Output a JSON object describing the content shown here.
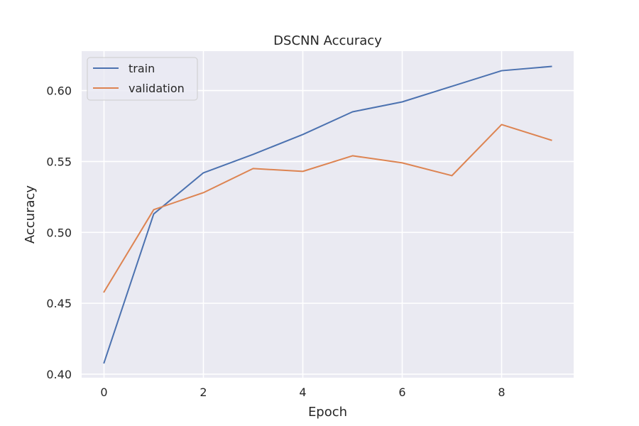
{
  "chart_data": {
    "type": "line",
    "title": "DSCNN Accuracy",
    "xlabel": "Epoch",
    "ylabel": "Accuracy",
    "x": [
      0,
      1,
      2,
      3,
      4,
      5,
      6,
      7,
      8,
      9
    ],
    "xlim": [
      -0.45,
      9.45
    ],
    "ylim": [
      0.3975,
      0.6278
    ],
    "xticks": [
      0,
      2,
      4,
      6,
      8
    ],
    "yticks": [
      0.4,
      0.45,
      0.5,
      0.55,
      0.6
    ],
    "ytick_labels": [
      "0.40",
      "0.45",
      "0.50",
      "0.55",
      "0.60"
    ],
    "xtick_labels": [
      "0",
      "2",
      "4",
      "6",
      "8"
    ],
    "grid": true,
    "legend_position": "top-left",
    "series": [
      {
        "name": "train",
        "color": "#4c72b0",
        "values": [
          0.408,
          0.513,
          0.542,
          0.555,
          0.569,
          0.585,
          0.592,
          0.603,
          0.614,
          0.617
        ]
      },
      {
        "name": "validation",
        "color": "#dd8452",
        "values": [
          0.458,
          0.516,
          0.528,
          0.545,
          0.543,
          0.554,
          0.549,
          0.54,
          0.576,
          0.565
        ]
      }
    ]
  },
  "colors": {
    "plot_background": "#eaeaf2",
    "grid": "#ffffff",
    "text": "#262626"
  }
}
